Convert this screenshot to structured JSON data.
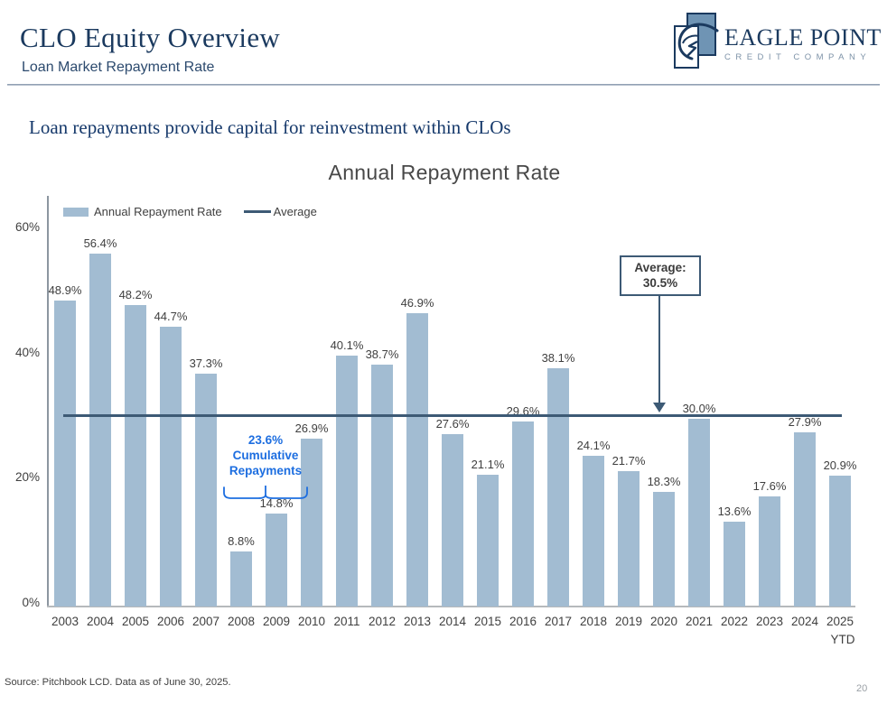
{
  "header": {
    "title": "CLO Equity Overview",
    "subtitle": "Loan Market Repayment Rate"
  },
  "logo": {
    "name": "EAGLE POINT",
    "tagline": "CREDIT COMPANY"
  },
  "key_message": "Loan repayments provide capital for reinvestment within CLOs",
  "chart_data": {
    "type": "bar",
    "title": "Annual Repayment Rate",
    "categories": [
      "2003",
      "2004",
      "2005",
      "2006",
      "2007",
      "2008",
      "2009",
      "2010",
      "2011",
      "2012",
      "2013",
      "2014",
      "2015",
      "2016",
      "2017",
      "2018",
      "2019",
      "2020",
      "2021",
      "2022",
      "2023",
      "2024",
      "2025"
    ],
    "values": [
      48.9,
      56.4,
      48.2,
      44.7,
      37.3,
      8.8,
      14.8,
      26.9,
      40.1,
      38.7,
      46.9,
      27.6,
      21.1,
      29.6,
      38.1,
      24.1,
      21.7,
      18.3,
      30.0,
      13.6,
      17.6,
      27.9,
      20.9
    ],
    "last_suffix": "YTD",
    "average": 30.5,
    "ylim": [
      0,
      60
    ],
    "ytick_values": [
      0,
      20,
      40,
      60
    ],
    "ytick_format": "percent",
    "grid": "off",
    "legend": [
      {
        "label": "Annual Repayment Rate",
        "type": "bar"
      },
      {
        "label": "Average",
        "type": "line"
      }
    ],
    "legend_position": "top-left",
    "callout": [
      "Average:",
      "30.5%"
    ],
    "cumulative_note": [
      "23.6%",
      "Cumulative",
      "Repayments"
    ],
    "colors": {
      "bar": "#a2bcd2",
      "average_line": "#3d5a75",
      "annotation_blue": "#1d6ee0"
    }
  },
  "footer": {
    "source": "Source: Pitchbook LCD. Data as of June 30, 2025.",
    "page": "20"
  }
}
